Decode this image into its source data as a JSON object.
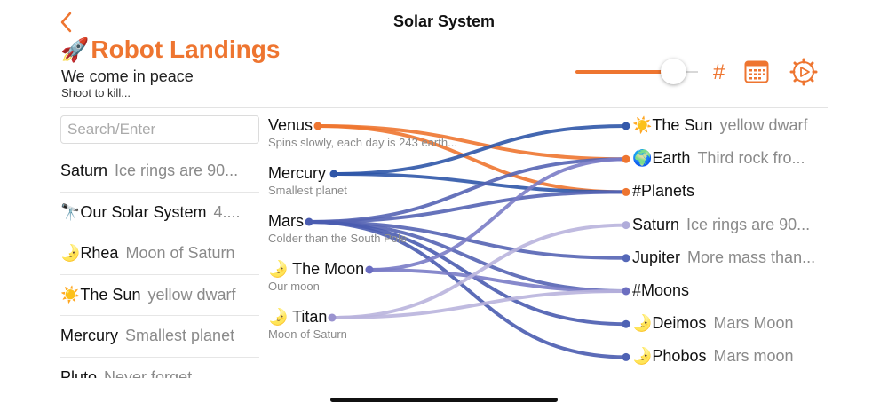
{
  "nav": {
    "title": "Solar System",
    "back_icon": "chevron-left-icon"
  },
  "header": {
    "title_emoji": "🚀",
    "title": "Robot Landings",
    "subtitle": "We come in peace",
    "subsubtitle": "Shoot to kill...",
    "slider_value": 0.8,
    "hash_label": "#",
    "accent_color": "#EE7530"
  },
  "search": {
    "placeholder": "Search/Enter",
    "value": ""
  },
  "list": [
    {
      "emoji": "",
      "title": "Saturn",
      "subtitle": "Ice rings are 90..."
    },
    {
      "emoji": "🔭",
      "title": "Our Solar System",
      "subtitle": "4...."
    },
    {
      "emoji": "🌛",
      "title": "Rhea",
      "subtitle": "Moon of Saturn"
    },
    {
      "emoji": "☀️",
      "title": "The Sun",
      "subtitle": "yellow dwarf"
    },
    {
      "emoji": "",
      "title": "Mercury",
      "subtitle": "Smallest planet"
    },
    {
      "emoji": "",
      "title": "Pluto",
      "subtitle": "Never forget"
    }
  ],
  "sources": [
    {
      "id": "venus",
      "emoji": "",
      "title": "Venus",
      "subtitle": "Spins slowly, each day is 243 earth...",
      "color": "#EE7530"
    },
    {
      "id": "mercury",
      "emoji": "",
      "title": "Mercury",
      "subtitle": "Smallest planet",
      "color": "#2F56A8"
    },
    {
      "id": "mars",
      "emoji": "",
      "title": "Mars",
      "subtitle": "Colder than the South Pole",
      "color": "#4A5CB0"
    },
    {
      "id": "moon",
      "emoji": "🌛",
      "title": "The Moon",
      "subtitle": "Our moon",
      "color": "#6B6EC2"
    },
    {
      "id": "titan",
      "emoji": "🌛",
      "title": "Titan",
      "subtitle": "Moon of Saturn",
      "color": "#9A93CF"
    }
  ],
  "targets": [
    {
      "id": "sun",
      "emoji": "☀️",
      "title": "The Sun",
      "subtitle": "yellow dwarf",
      "color": "#3358AA"
    },
    {
      "id": "earth",
      "emoji": "🌍",
      "title": "Earth",
      "subtitle": "Third rock fro...",
      "color": "#EE7530"
    },
    {
      "id": "planets",
      "emoji": "",
      "title": "#Planets",
      "subtitle": "",
      "color": "#EE7530"
    },
    {
      "id": "saturn",
      "emoji": "",
      "title": "Saturn",
      "subtitle": "Ice rings are 90...",
      "color": "#B0ACDA"
    },
    {
      "id": "jupiter",
      "emoji": "",
      "title": "Jupiter",
      "subtitle": "More mass than...",
      "color": "#5568B8"
    },
    {
      "id": "moons",
      "emoji": "",
      "title": "#Moons",
      "subtitle": "",
      "color": "#6C6EC0"
    },
    {
      "id": "deimos",
      "emoji": "🌛",
      "title": "Deimos",
      "subtitle": "Mars Moon",
      "color": "#4E62B4"
    },
    {
      "id": "phobos",
      "emoji": "🌛",
      "title": "Phobos",
      "subtitle": "Mars moon",
      "color": "#4E62B4"
    }
  ],
  "links": [
    {
      "from": "venus",
      "to": "earth",
      "color": "#EE7530"
    },
    {
      "from": "venus",
      "to": "planets",
      "color": "#EE7530"
    },
    {
      "from": "mercury",
      "to": "sun",
      "color": "#2F56A8"
    },
    {
      "from": "mercury",
      "to": "planets",
      "color": "#2F56A8"
    },
    {
      "from": "mars",
      "to": "earth",
      "color": "#5564B4"
    },
    {
      "from": "mars",
      "to": "planets",
      "color": "#5564B4"
    },
    {
      "from": "mars",
      "to": "jupiter",
      "color": "#5564B4"
    },
    {
      "from": "mars",
      "to": "moons",
      "color": "#5564B4"
    },
    {
      "from": "mars",
      "to": "deimos",
      "color": "#4A5CB0"
    },
    {
      "from": "mars",
      "to": "phobos",
      "color": "#4A5CB0"
    },
    {
      "from": "moon",
      "to": "earth",
      "color": "#7A7CC6"
    },
    {
      "from": "moon",
      "to": "moons",
      "color": "#7A7CC6"
    },
    {
      "from": "titan",
      "to": "saturn",
      "color": "#B9B4DD"
    },
    {
      "from": "titan",
      "to": "moons",
      "color": "#B9B4DD"
    }
  ]
}
